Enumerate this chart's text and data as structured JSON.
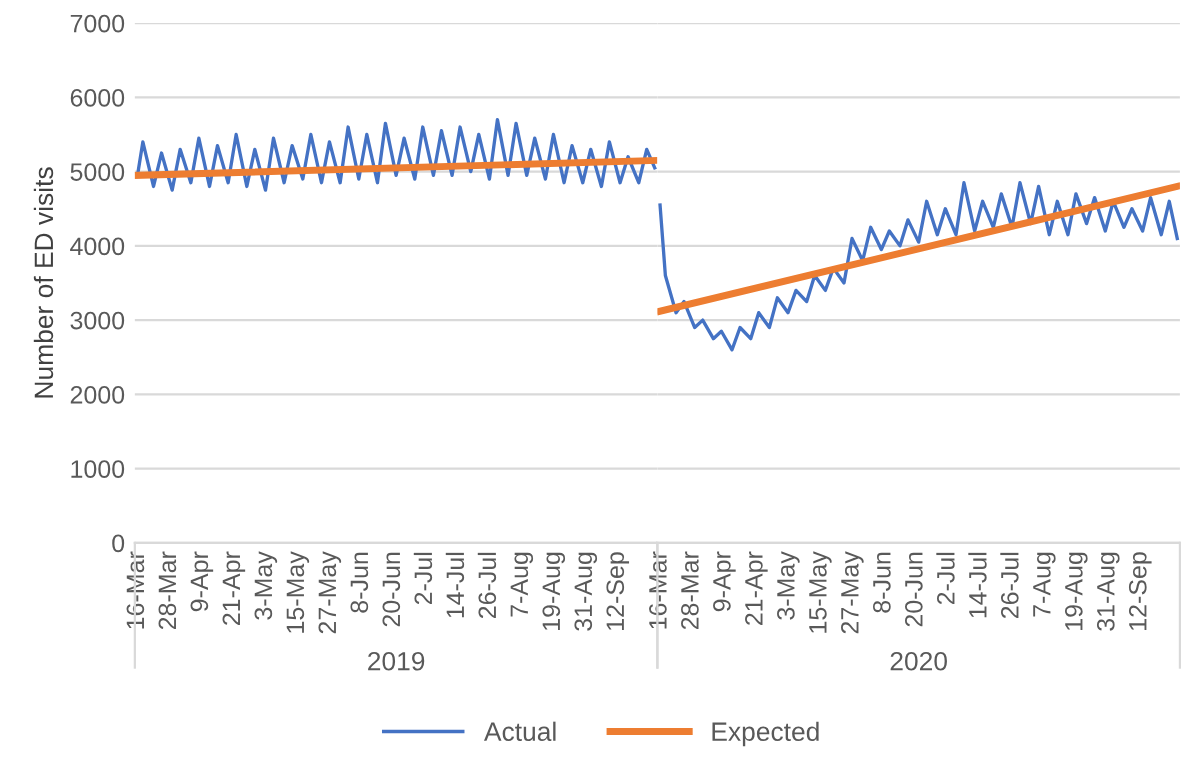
{
  "chart_data": [
    {
      "type": "line",
      "ylabel": "Number of ED visits",
      "xlabel": "2019",
      "ylim": [
        0,
        7000
      ],
      "yticks": [
        0,
        1000,
        2000,
        3000,
        4000,
        5000,
        6000,
        7000
      ],
      "xlim": [
        "2019-03-15",
        "2019-09-27"
      ],
      "xticks": [
        {
          "value": "2019-03-16",
          "label": "16-Mar"
        },
        {
          "value": "2019-03-28",
          "label": "28-Mar"
        },
        {
          "value": "2019-04-09",
          "label": "9-Apr"
        },
        {
          "value": "2019-04-21",
          "label": "21-Apr"
        },
        {
          "value": "2019-05-03",
          "label": "3-May"
        },
        {
          "value": "2019-05-15",
          "label": "15-May"
        },
        {
          "value": "2019-05-27",
          "label": "27-May"
        },
        {
          "value": "2019-06-08",
          "label": "8-Jun"
        },
        {
          "value": "2019-06-20",
          "label": "20-Jun"
        },
        {
          "value": "2019-07-02",
          "label": "2-Jul"
        },
        {
          "value": "2019-07-14",
          "label": "14-Jul"
        },
        {
          "value": "2019-07-26",
          "label": "26-Jul"
        },
        {
          "value": "2019-08-07",
          "label": "7-Aug"
        },
        {
          "value": "2019-08-19",
          "label": "19-Aug"
        },
        {
          "value": "2019-08-31",
          "label": "31-Aug"
        },
        {
          "value": "2019-09-12",
          "label": "12-Sep"
        }
      ],
      "grid": "y",
      "legend": "bottom",
      "marker": "none",
      "line_style": "solid",
      "series": [
        {
          "name": "Actual",
          "color": "#4472c4",
          "x": [
            "2019-03-16",
            "2019-03-18",
            "2019-03-22",
            "2019-03-25",
            "2019-03-29",
            "2019-04-01",
            "2019-04-05",
            "2019-04-08",
            "2019-04-12",
            "2019-04-15",
            "2019-04-19",
            "2019-04-22",
            "2019-04-26",
            "2019-04-29",
            "2019-05-03",
            "2019-05-06",
            "2019-05-10",
            "2019-05-13",
            "2019-05-17",
            "2019-05-20",
            "2019-05-24",
            "2019-05-27",
            "2019-05-31",
            "2019-06-03",
            "2019-06-07",
            "2019-06-10",
            "2019-06-14",
            "2019-06-17",
            "2019-06-21",
            "2019-06-24",
            "2019-06-28",
            "2019-07-01",
            "2019-07-05",
            "2019-07-08",
            "2019-07-12",
            "2019-07-15",
            "2019-07-19",
            "2019-07-22",
            "2019-07-26",
            "2019-07-29",
            "2019-08-02",
            "2019-08-05",
            "2019-08-09",
            "2019-08-12",
            "2019-08-16",
            "2019-08-19",
            "2019-08-23",
            "2019-08-26",
            "2019-08-30",
            "2019-09-02",
            "2019-09-06",
            "2019-09-09",
            "2019-09-13",
            "2019-09-16",
            "2019-09-20",
            "2019-09-23",
            "2019-09-26"
          ],
          "values": [
            4950,
            5400,
            4800,
            5250,
            4750,
            5300,
            4850,
            5450,
            4800,
            5350,
            4850,
            5500,
            4800,
            5300,
            4750,
            5450,
            4850,
            5350,
            4900,
            5500,
            4850,
            5400,
            4850,
            5600,
            4900,
            5500,
            4850,
            5650,
            4950,
            5450,
            4900,
            5600,
            4950,
            5550,
            4950,
            5600,
            5000,
            5500,
            4900,
            5700,
            4950,
            5650,
            4950,
            5450,
            4900,
            5500,
            4850,
            5350,
            4850,
            5300,
            4800,
            5400,
            4850,
            5200,
            4850,
            5300,
            5050
          ]
        },
        {
          "name": "Expected",
          "color": "#ed7d31",
          "x": [
            "2019-03-16",
            "2019-09-26"
          ],
          "values": [
            4950,
            5150
          ]
        }
      ]
    },
    {
      "type": "line",
      "xlabel": "2020",
      "tick_labels": "x",
      "ylim": [
        0,
        7000
      ],
      "yticks": [
        0,
        1000,
        2000,
        3000,
        4000,
        5000,
        6000,
        7000
      ],
      "xlim": [
        "2020-03-15",
        "2020-09-27"
      ],
      "xticks": [
        {
          "value": "2020-03-16",
          "label": "16-Mar"
        },
        {
          "value": "2020-03-28",
          "label": "28-Mar"
        },
        {
          "value": "2020-04-09",
          "label": "9-Apr"
        },
        {
          "value": "2020-04-21",
          "label": "21-Apr"
        },
        {
          "value": "2020-05-03",
          "label": "3-May"
        },
        {
          "value": "2020-05-15",
          "label": "15-May"
        },
        {
          "value": "2020-05-27",
          "label": "27-May"
        },
        {
          "value": "2020-06-08",
          "label": "8-Jun"
        },
        {
          "value": "2020-06-20",
          "label": "20-Jun"
        },
        {
          "value": "2020-07-02",
          "label": "2-Jul"
        },
        {
          "value": "2020-07-14",
          "label": "14-Jul"
        },
        {
          "value": "2020-07-26",
          "label": "26-Jul"
        },
        {
          "value": "2020-08-07",
          "label": "7-Aug"
        },
        {
          "value": "2020-08-19",
          "label": "19-Aug"
        },
        {
          "value": "2020-08-31",
          "label": "31-Aug"
        },
        {
          "value": "2020-09-12",
          "label": "12-Sep"
        }
      ],
      "grid": "y",
      "marker": "none",
      "line_style": "solid",
      "series": [
        {
          "name": "Actual",
          "color": "#4472c4",
          "x": [
            "2020-03-16",
            "2020-03-18",
            "2020-03-22",
            "2020-03-25",
            "2020-03-29",
            "2020-04-01",
            "2020-04-05",
            "2020-04-08",
            "2020-04-12",
            "2020-04-15",
            "2020-04-19",
            "2020-04-22",
            "2020-04-26",
            "2020-04-29",
            "2020-05-03",
            "2020-05-06",
            "2020-05-10",
            "2020-05-13",
            "2020-05-17",
            "2020-05-20",
            "2020-05-24",
            "2020-05-27",
            "2020-05-31",
            "2020-06-03",
            "2020-06-07",
            "2020-06-10",
            "2020-06-14",
            "2020-06-17",
            "2020-06-21",
            "2020-06-24",
            "2020-06-28",
            "2020-07-01",
            "2020-07-05",
            "2020-07-08",
            "2020-07-12",
            "2020-07-15",
            "2020-07-19",
            "2020-07-22",
            "2020-07-26",
            "2020-07-29",
            "2020-08-02",
            "2020-08-05",
            "2020-08-09",
            "2020-08-12",
            "2020-08-16",
            "2020-08-19",
            "2020-08-23",
            "2020-08-26",
            "2020-08-30",
            "2020-09-02",
            "2020-09-06",
            "2020-09-09",
            "2020-09-13",
            "2020-09-16",
            "2020-09-20",
            "2020-09-23",
            "2020-09-26"
          ],
          "values": [
            4550,
            3600,
            3100,
            3250,
            2900,
            3000,
            2750,
            2850,
            2600,
            2900,
            2750,
            3100,
            2900,
            3300,
            3100,
            3400,
            3250,
            3600,
            3400,
            3700,
            3500,
            4100,
            3800,
            4250,
            3950,
            4200,
            4000,
            4350,
            4050,
            4600,
            4150,
            4500,
            4150,
            4850,
            4200,
            4600,
            4250,
            4700,
            4250,
            4850,
            4300,
            4800,
            4150,
            4600,
            4150,
            4700,
            4300,
            4650,
            4200,
            4600,
            4250,
            4500,
            4200,
            4650,
            4150,
            4600,
            4100
          ]
        },
        {
          "name": "Expected",
          "color": "#ed7d31",
          "x": [
            "2020-03-16",
            "2020-09-26"
          ],
          "values": [
            3120,
            4800
          ]
        }
      ]
    }
  ]
}
